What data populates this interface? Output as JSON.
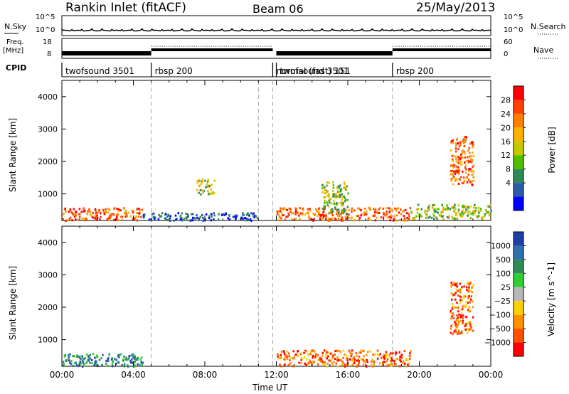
{
  "header": {
    "title": "Rankin Inlet (fitACF)",
    "beam": "Beam 06",
    "date": "25/May/2013"
  },
  "top_panels": {
    "nsky_label": "N.Sky",
    "nsearch_label": "N.Search",
    "nsky_ticks": [
      "10^5",
      "10^0"
    ],
    "nsearch_ticks": [
      "10^5",
      "10^0"
    ],
    "freq_label": "Freq.",
    "freq_unit": "[MHz]",
    "freq_ticks": [
      "18",
      "8"
    ],
    "nave_label": "Nave",
    "nave_ticks": [
      "60",
      "0"
    ],
    "cpid_label": "CPID",
    "cpid_segments": [
      {
        "label": "twofsound 3501",
        "start": 0.0,
        "end": 5.0
      },
      {
        "label": "rbsp 200",
        "start": 5.0,
        "end": 11.8
      },
      {
        "label": "normal (fast) 151",
        "start": 11.8,
        "end": 12.0
      },
      {
        "label": "twofsound 3501",
        "start": 12.0,
        "end": 18.5
      },
      {
        "label": "rbsp 200",
        "start": 18.5,
        "end": 24.0
      }
    ]
  },
  "chart_data": [
    {
      "type": "heatmap",
      "ylabel": "Slant Range [km]",
      "xlabel": "Time UT",
      "xlim": [
        0,
        24
      ],
      "ylim": [
        180,
        4500
      ],
      "y_ticks": [
        1000,
        2000,
        3000,
        4000
      ],
      "x_ticks": [
        "00:00",
        "04:00",
        "08:00",
        "12:00",
        "16:00",
        "20:00",
        "00:00"
      ],
      "colorbar": {
        "label": "Power [dB]",
        "ticks": [
          "28",
          "24",
          "20",
          "16",
          "12",
          "8",
          "4"
        ],
        "colors": [
          "#ff0000",
          "#ff4000",
          "#ff8000",
          "#ffb000",
          "#c8c800",
          "#4ec000",
          "#2e8b57",
          "#2a5caa",
          "#0000ff"
        ]
      },
      "echo_regions": [
        {
          "t0": 0.0,
          "t1": 4.5,
          "r0": 200,
          "r1": 600,
          "level": "high"
        },
        {
          "t0": 4.5,
          "t1": 11.0,
          "r0": 200,
          "r1": 450,
          "level": "low"
        },
        {
          "t0": 12.0,
          "t1": 19.5,
          "r0": 200,
          "r1": 600,
          "level": "high"
        },
        {
          "t0": 19.5,
          "t1": 24.0,
          "r0": 250,
          "r1": 700,
          "level": "mid"
        },
        {
          "t0": 21.7,
          "t1": 23.0,
          "r0": 1300,
          "r1": 2800,
          "level": "high"
        },
        {
          "t0": 14.5,
          "t1": 16.0,
          "r0": 400,
          "r1": 1400,
          "level": "mid"
        },
        {
          "t0": 7.5,
          "t1": 8.5,
          "r0": 1000,
          "r1": 1500,
          "level": "mid"
        }
      ],
      "vertical_markers": [
        5.0,
        11.0,
        11.8,
        18.5
      ]
    },
    {
      "type": "heatmap",
      "ylabel": "Slant Range [km]",
      "xlabel": "Time UT",
      "xlim": [
        0,
        24
      ],
      "ylim": [
        180,
        4500
      ],
      "y_ticks": [
        1000,
        2000,
        3000,
        4000
      ],
      "x_ticks": [
        "00:00",
        "04:00",
        "08:00",
        "12:00",
        "16:00",
        "20:00",
        "00:00"
      ],
      "colorbar": {
        "label": "Velocity [m s^-1]",
        "ticks": [
          "1000",
          "500",
          "100",
          "25",
          "−25",
          "−100",
          "−500",
          "−1000"
        ],
        "colors": [
          "#1f3fa8",
          "#2f6fb0",
          "#2e8b57",
          "#32cd32",
          "#b8b8b8",
          "#ffd000",
          "#ff9000",
          "#ff5000",
          "#ff0000"
        ]
      },
      "echo_regions": [
        {
          "t0": 0.0,
          "t1": 4.5,
          "r0": 200,
          "r1": 600,
          "level": "pos"
        },
        {
          "t0": 12.0,
          "t1": 19.5,
          "r0": 200,
          "r1": 700,
          "level": "neg"
        },
        {
          "t0": 21.7,
          "t1": 23.0,
          "r0": 1200,
          "r1": 2800,
          "level": "neg"
        }
      ],
      "vertical_markers": [
        5.0,
        11.0,
        11.8,
        18.5
      ]
    }
  ]
}
